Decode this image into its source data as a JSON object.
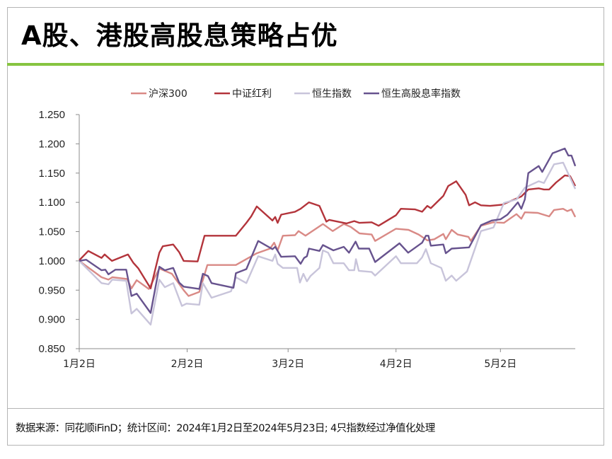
{
  "title": "A股、港股高股息策略占优",
  "footer": "数据来源：同花顺iFinD；统计区间：2024年1月2日至2024年5月23日; 4只指数经过净值化处理",
  "chart_data": {
    "type": "line",
    "title": "",
    "xlabel": "",
    "ylabel": "",
    "x_unit": "days since 2024-01-02",
    "xlim": [
      0,
      142.5
    ],
    "ylim": [
      0.85,
      1.25
    ],
    "yticks": [
      0.85,
      0.9,
      0.95,
      1.0,
      1.05,
      1.1,
      1.15,
      1.2,
      1.25
    ],
    "ytick_labels": [
      "0.850",
      "0.900",
      "0.950",
      "1.000",
      "1.050",
      "1.100",
      "1.150",
      "1.200",
      "1.250"
    ],
    "xticks": [
      0,
      31,
      60,
      91,
      121
    ],
    "xtick_labels": [
      "1月2日",
      "2月2日",
      "3月2日",
      "4月2日",
      "5月2日"
    ],
    "grid": false,
    "legend_position": "top-center",
    "series": [
      {
        "name": "沪深300",
        "color": "#d98a86",
        "points": [
          [
            0,
            1.0
          ],
          [
            6.4,
            0.972
          ],
          [
            8.4,
            0.968
          ],
          [
            9.5,
            0.972
          ],
          [
            13.8,
            0.969
          ],
          [
            15,
            0.953
          ],
          [
            16.5,
            0.967
          ],
          [
            20,
            0.952
          ],
          [
            23,
            0.987
          ],
          [
            26.6,
            0.978
          ],
          [
            30,
            0.95
          ],
          [
            31.4,
            0.94
          ],
          [
            34.5,
            0.947
          ],
          [
            36.8,
            0.993
          ],
          [
            45,
            0.993
          ],
          [
            51,
            1.013
          ],
          [
            54.8,
            1.021
          ],
          [
            56,
            1.031
          ],
          [
            57,
            1.018
          ],
          [
            58.5,
            1.043
          ],
          [
            62,
            1.044
          ],
          [
            63,
            1.051
          ],
          [
            65,
            1.043
          ],
          [
            70,
            1.063
          ],
          [
            72.8,
            1.051
          ],
          [
            76,
            1.063
          ],
          [
            78,
            1.058
          ],
          [
            80.5,
            1.047
          ],
          [
            84,
            1.045
          ],
          [
            85,
            1.034
          ],
          [
            91,
            1.055
          ],
          [
            94.6,
            1.053
          ],
          [
            97.5,
            1.045
          ],
          [
            100,
            1.035
          ],
          [
            102,
            1.037
          ],
          [
            104.6,
            1.046
          ],
          [
            105.3,
            1.037
          ],
          [
            107,
            1.053
          ],
          [
            108.7,
            1.045
          ],
          [
            111.8,
            1.041
          ],
          [
            112.5,
            1.034
          ],
          [
            115.4,
            1.06
          ],
          [
            118.9,
            1.066
          ],
          [
            122,
            1.065
          ],
          [
            125.6,
            1.08
          ],
          [
            127,
            1.072
          ],
          [
            128,
            1.083
          ],
          [
            131.7,
            1.082
          ],
          [
            135,
            1.076
          ],
          [
            136.4,
            1.087
          ],
          [
            139,
            1.089
          ],
          [
            140.2,
            1.085
          ],
          [
            141.4,
            1.088
          ],
          [
            142.5,
            1.075
          ]
        ]
      },
      {
        "name": "中证红利",
        "color": "#b3343b",
        "points": [
          [
            0,
            1.001
          ],
          [
            2.6,
            1.017
          ],
          [
            6.4,
            1.005
          ],
          [
            7.3,
            1.011
          ],
          [
            9.4,
            1.0
          ],
          [
            14,
            1.011
          ],
          [
            15.5,
            0.997
          ],
          [
            17,
            0.987
          ],
          [
            20.5,
            0.953
          ],
          [
            23,
            1.014
          ],
          [
            24,
            1.025
          ],
          [
            27,
            1.028
          ],
          [
            28.7,
            1.015
          ],
          [
            30,
            1.0
          ],
          [
            34,
            0.999
          ],
          [
            36,
            1.043
          ],
          [
            45,
            1.043
          ],
          [
            48,
            1.065
          ],
          [
            49.4,
            1.076
          ],
          [
            51,
            1.093
          ],
          [
            55.5,
            1.069
          ],
          [
            56.3,
            1.075
          ],
          [
            57,
            1.065
          ],
          [
            58,
            1.079
          ],
          [
            62,
            1.084
          ],
          [
            63.6,
            1.089
          ],
          [
            66,
            1.1
          ],
          [
            69,
            1.094
          ],
          [
            71,
            1.067
          ],
          [
            71.8,
            1.07
          ],
          [
            76.8,
            1.064
          ],
          [
            79,
            1.068
          ],
          [
            80.5,
            1.065
          ],
          [
            84,
            1.066
          ],
          [
            86,
            1.06
          ],
          [
            91,
            1.078
          ],
          [
            92.4,
            1.089
          ],
          [
            96.5,
            1.088
          ],
          [
            98.5,
            1.084
          ],
          [
            100,
            1.094
          ],
          [
            101,
            1.09
          ],
          [
            104.6,
            1.111
          ],
          [
            106,
            1.128
          ],
          [
            108.3,
            1.136
          ],
          [
            111,
            1.113
          ],
          [
            112,
            1.095
          ],
          [
            113.7,
            1.1
          ],
          [
            115.4,
            1.095
          ],
          [
            118,
            1.094
          ],
          [
            121.5,
            1.096
          ],
          [
            127,
            1.11
          ],
          [
            129,
            1.122
          ],
          [
            132,
            1.124
          ],
          [
            133.5,
            1.122
          ],
          [
            135,
            1.122
          ],
          [
            137,
            1.134
          ],
          [
            139.5,
            1.146
          ],
          [
            141,
            1.145
          ],
          [
            142.5,
            1.128
          ]
        ]
      },
      {
        "name": "恒生指数",
        "color": "#c8c4da",
        "points": [
          [
            0,
            1.0
          ],
          [
            6.4,
            0.962
          ],
          [
            8.4,
            0.96
          ],
          [
            9.5,
            0.968
          ],
          [
            13.5,
            0.966
          ],
          [
            15,
            0.91
          ],
          [
            16.5,
            0.918
          ],
          [
            20.5,
            0.891
          ],
          [
            23,
            0.968
          ],
          [
            24.6,
            0.955
          ],
          [
            27,
            0.962
          ],
          [
            29.5,
            0.923
          ],
          [
            30.8,
            0.927
          ],
          [
            34.5,
            0.925
          ],
          [
            35.5,
            0.962
          ],
          [
            38,
            0.937
          ],
          [
            43.6,
            0.948
          ],
          [
            45,
            0.972
          ],
          [
            48,
            0.962
          ],
          [
            51.4,
            1.008
          ],
          [
            55.5,
            1.0
          ],
          [
            56.3,
            1.011
          ],
          [
            57,
            0.995
          ],
          [
            58.5,
            0.988
          ],
          [
            62.6,
            0.988
          ],
          [
            63.4,
            0.963
          ],
          [
            64.4,
            0.978
          ],
          [
            65.4,
            0.965
          ],
          [
            66.4,
            0.974
          ],
          [
            69,
            0.988
          ],
          [
            70,
            1.018
          ],
          [
            71.5,
            1.014
          ],
          [
            73,
            0.996
          ],
          [
            76,
            0.996
          ],
          [
            77.5,
            0.984
          ],
          [
            79,
            0.984
          ],
          [
            79.5,
            1.003
          ],
          [
            80.3,
            0.983
          ],
          [
            84,
            0.981
          ],
          [
            85,
            0.975
          ],
          [
            91,
            1.008
          ],
          [
            92.4,
            0.996
          ],
          [
            97,
            0.996
          ],
          [
            98.5,
            1.006
          ],
          [
            99.6,
            1.02
          ],
          [
            101,
            0.996
          ],
          [
            104,
            0.988
          ],
          [
            105.3,
            0.966
          ],
          [
            107,
            0.975
          ],
          [
            108.3,
            0.966
          ],
          [
            111.4,
            0.982
          ],
          [
            113.8,
            1.023
          ],
          [
            115.4,
            1.051
          ],
          [
            119,
            1.057
          ],
          [
            122,
            1.099
          ],
          [
            125.6,
            1.105
          ],
          [
            128,
            1.125
          ],
          [
            132,
            1.136
          ],
          [
            133.5,
            1.133
          ],
          [
            136.4,
            1.165
          ],
          [
            139,
            1.168
          ],
          [
            142.5,
            1.123
          ]
        ]
      },
      {
        "name": "恒生高股息率指数",
        "color": "#67538e",
        "points": [
          [
            0,
            1.0
          ],
          [
            2,
            1.002
          ],
          [
            6.4,
            0.984
          ],
          [
            7.5,
            0.985
          ],
          [
            8.4,
            0.977
          ],
          [
            10.4,
            0.985
          ],
          [
            13.5,
            0.985
          ],
          [
            15,
            0.94
          ],
          [
            16.5,
            0.944
          ],
          [
            20.5,
            0.911
          ],
          [
            23,
            0.99
          ],
          [
            24.6,
            0.984
          ],
          [
            27,
            0.988
          ],
          [
            28.7,
            0.963
          ],
          [
            30,
            0.956
          ],
          [
            34.5,
            0.952
          ],
          [
            35.5,
            0.978
          ],
          [
            37,
            0.974
          ],
          [
            38,
            0.962
          ],
          [
            44.3,
            0.954
          ],
          [
            45,
            0.979
          ],
          [
            48,
            0.986
          ],
          [
            51.4,
            1.034
          ],
          [
            55.5,
            1.02
          ],
          [
            56.3,
            1.024
          ],
          [
            58,
            1.007
          ],
          [
            62,
            1.008
          ],
          [
            63.6,
            0.995
          ],
          [
            64.6,
            1.005
          ],
          [
            65.4,
            1.008
          ],
          [
            66,
            1.021
          ],
          [
            69,
            1.017
          ],
          [
            70,
            1.027
          ],
          [
            73,
            1.018
          ],
          [
            76,
            1.024
          ],
          [
            77.5,
            1.014
          ],
          [
            79.4,
            1.033
          ],
          [
            80.3,
            1.021
          ],
          [
            83.3,
            1.021
          ],
          [
            85,
            0.998
          ],
          [
            92,
            1.03
          ],
          [
            94.5,
            1.014
          ],
          [
            98.5,
            1.031
          ],
          [
            99.6,
            1.043
          ],
          [
            100.3,
            1.043
          ],
          [
            101,
            1.026
          ],
          [
            104.6,
            1.028
          ],
          [
            105.3,
            1.013
          ],
          [
            107,
            1.021
          ],
          [
            112,
            1.023
          ],
          [
            115.4,
            1.061
          ],
          [
            118.5,
            1.069
          ],
          [
            121,
            1.071
          ],
          [
            123,
            1.079
          ],
          [
            126,
            1.1
          ],
          [
            127,
            1.089
          ],
          [
            128,
            1.105
          ],
          [
            129,
            1.15
          ],
          [
            132,
            1.162
          ],
          [
            133,
            1.152
          ],
          [
            136,
            1.184
          ],
          [
            139.5,
            1.192
          ],
          [
            140.5,
            1.18
          ],
          [
            141.4,
            1.18
          ],
          [
            142.5,
            1.162
          ]
        ]
      }
    ]
  }
}
